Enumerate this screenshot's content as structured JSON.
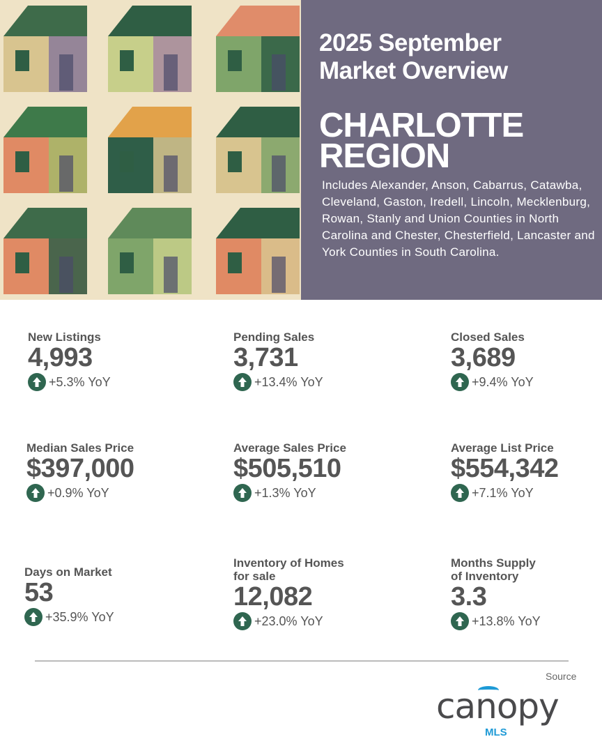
{
  "header": {
    "title": "2025 September Market Overview",
    "title_line1": "2025 September",
    "title_line2": "Market Overview",
    "region_line1": "CHARLOTTE",
    "region_line2": "REGION",
    "description": "Includes Alexander, Anson, Cabarrus, Catawba, Cleveland, Gaston, Iredell, Lincoln, Mecklenburg, Rowan, Stanly and Union Counties in North Carolina and Chester, Chesterfield, Lancaster and York Counties in South Carolina.",
    "panel_color": "#6f6a80"
  },
  "stats": [
    {
      "label": "New Listings",
      "value": "4,993",
      "change": "+5.3% YoY",
      "direction": "up"
    },
    {
      "label": "Pending Sales",
      "value": "3,731",
      "change": "+13.4% YoY",
      "direction": "up"
    },
    {
      "label": "Closed Sales",
      "value": "3,689",
      "change": "+9.4% YoY",
      "direction": "up"
    },
    {
      "label": "Median Sales Price",
      "value": "$397,000",
      "change": "+0.9% YoY",
      "direction": "up"
    },
    {
      "label": "Average Sales Price",
      "value": "$505,510",
      "change": "+1.3% YoY",
      "direction": "up"
    },
    {
      "label": "Average List Price",
      "value": "$554,342",
      "change": "+7.1% YoY",
      "direction": "up"
    },
    {
      "label": "Days on Market",
      "value": "53",
      "change": "+35.9% YoY",
      "direction": "up"
    },
    {
      "label": "Inventory of Homes for sale",
      "value": "12,082",
      "change": "+23.0% YoY",
      "direction": "up"
    },
    {
      "label": "Months Supply of Inventory",
      "value": "3.3",
      "change": "+13.8% YoY",
      "direction": "up"
    }
  ],
  "footer": {
    "source_label": "Source",
    "logo_text": "canopy",
    "logo_sub": "MLS",
    "arrow_color": "#2f6650",
    "logo_accent": "#1e9ad6"
  }
}
